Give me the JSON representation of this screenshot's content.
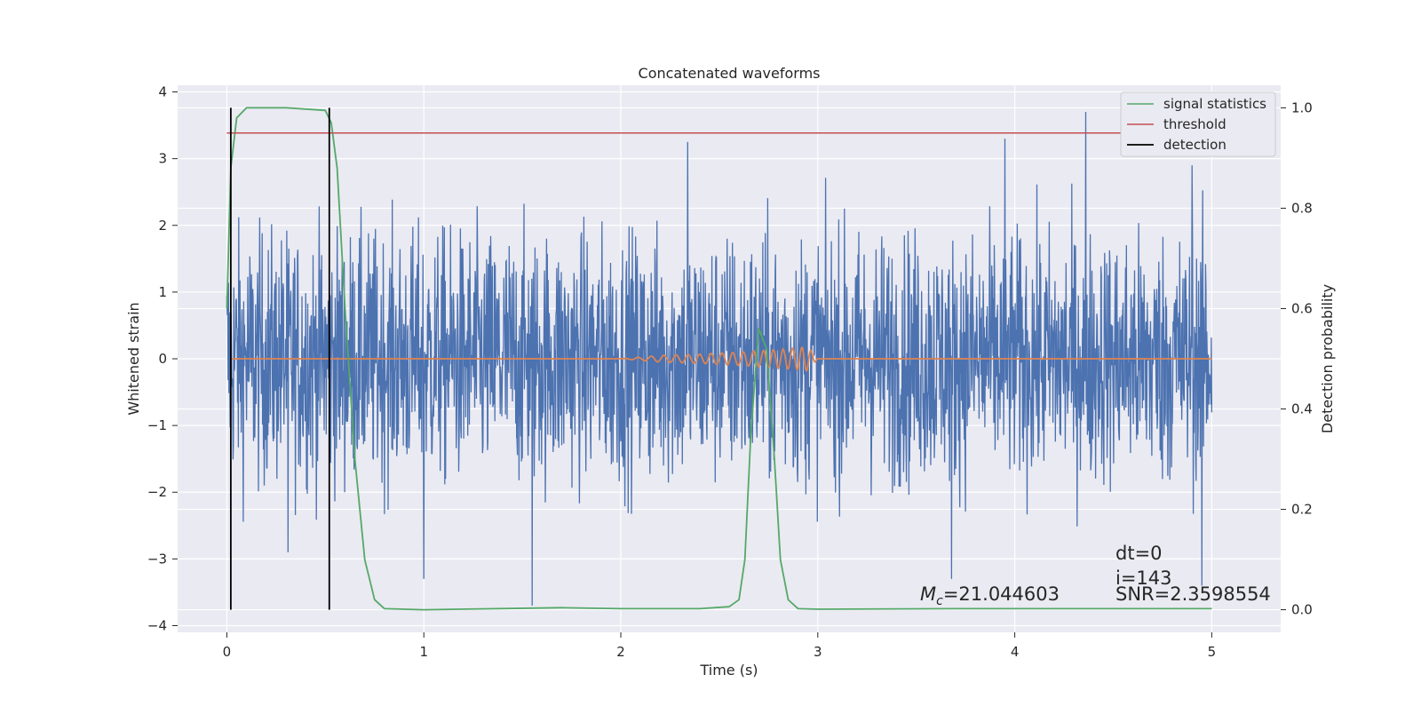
{
  "chart_data": {
    "type": "line",
    "title": "Concatenated waveforms",
    "xlabel": "Time (s)",
    "ylabel": "Whitened strain",
    "y2label": "Detection probability",
    "xlim": [
      -0.25,
      5.35
    ],
    "ylim": [
      -4.1,
      4.1
    ],
    "y2lim": [
      -0.045,
      1.045
    ],
    "xticks": [
      "0",
      "1",
      "2",
      "3",
      "4",
      "5"
    ],
    "xtick_values": [
      0,
      1,
      2,
      3,
      4,
      5
    ],
    "yticks": [
      "4",
      "3",
      "2",
      "1",
      "0",
      "−1",
      "−2",
      "−3",
      "−4"
    ],
    "ytick_values": [
      4,
      3,
      2,
      1,
      0,
      -1,
      -2,
      -3,
      -4
    ],
    "y2ticks": [
      "1.0",
      "0.8",
      "0.6",
      "0.4",
      "0.2",
      "0.0"
    ],
    "y2tick_values": [
      1.0,
      0.8,
      0.6,
      0.4,
      0.2,
      0.0
    ],
    "grid": true,
    "legend_position": "top-right",
    "legend": [
      "signal statistics",
      "threshold",
      "detection"
    ],
    "colors": {
      "strain": "#4c72b0",
      "template": "#dd8452",
      "statistics": "#55a868",
      "threshold": "#c44e52",
      "detection": "#000000",
      "plot_bg": "#eaeaf2",
      "grid": "#ffffff"
    },
    "series": [
      {
        "name": "strain noise",
        "axis": "left",
        "x_range": [
          0,
          5
        ],
        "amplitude_typical": 1.0,
        "peaks": [
          {
            "x": 2.34,
            "y": 3.25
          },
          {
            "x": 4.36,
            "y": 3.7
          },
          {
            "x": 3.95,
            "y": 3.3
          },
          {
            "x": 4.9,
            "y": 2.9
          },
          {
            "x": 1.55,
            "y": -3.7
          },
          {
            "x": 1.0,
            "y": -3.3
          },
          {
            "x": 3.68,
            "y": -3.3
          },
          {
            "x": 4.95,
            "y": -3.4
          },
          {
            "x": 0.31,
            "y": -2.9
          }
        ]
      },
      {
        "name": "waveform",
        "axis": "left",
        "x": [
          0.02,
          2.0,
          2.2,
          2.4,
          2.6,
          2.8,
          2.95,
          3.0,
          5.0
        ],
        "y": [
          0.0,
          0.0,
          0.05,
          0.07,
          0.1,
          0.14,
          0.18,
          0.0,
          0.0
        ]
      },
      {
        "name": "signal statistics",
        "axis": "right",
        "x": [
          0.0,
          0.02,
          0.05,
          0.1,
          0.3,
          0.5,
          0.53,
          0.56,
          0.6,
          0.65,
          0.7,
          0.75,
          0.8,
          1.0,
          1.7,
          2.0,
          2.4,
          2.55,
          2.6,
          2.63,
          2.66,
          2.7,
          2.74,
          2.78,
          2.81,
          2.85,
          2.9,
          3.0,
          3.7,
          5.0
        ],
        "y": [
          0.6,
          0.88,
          0.98,
          1.0,
          1.0,
          0.995,
          0.97,
          0.88,
          0.6,
          0.3,
          0.1,
          0.02,
          0.002,
          0.0,
          0.004,
          0.002,
          0.002,
          0.006,
          0.02,
          0.1,
          0.35,
          0.56,
          0.52,
          0.3,
          0.1,
          0.02,
          0.002,
          0.001,
          0.002,
          0.002
        ]
      },
      {
        "name": "threshold",
        "axis": "right",
        "x": [
          0.0,
          5.1
        ],
        "y": [
          0.95,
          0.95
        ]
      },
      {
        "name": "detection",
        "axis": "right",
        "x": [
          0.02,
          0.52
        ],
        "y_range": [
          0.0,
          1.0
        ]
      }
    ],
    "annotations": {
      "mc": "M_c=21.044603",
      "dt": "dt=0",
      "i": "i=143",
      "snr": "SNR=2.3598554"
    }
  }
}
